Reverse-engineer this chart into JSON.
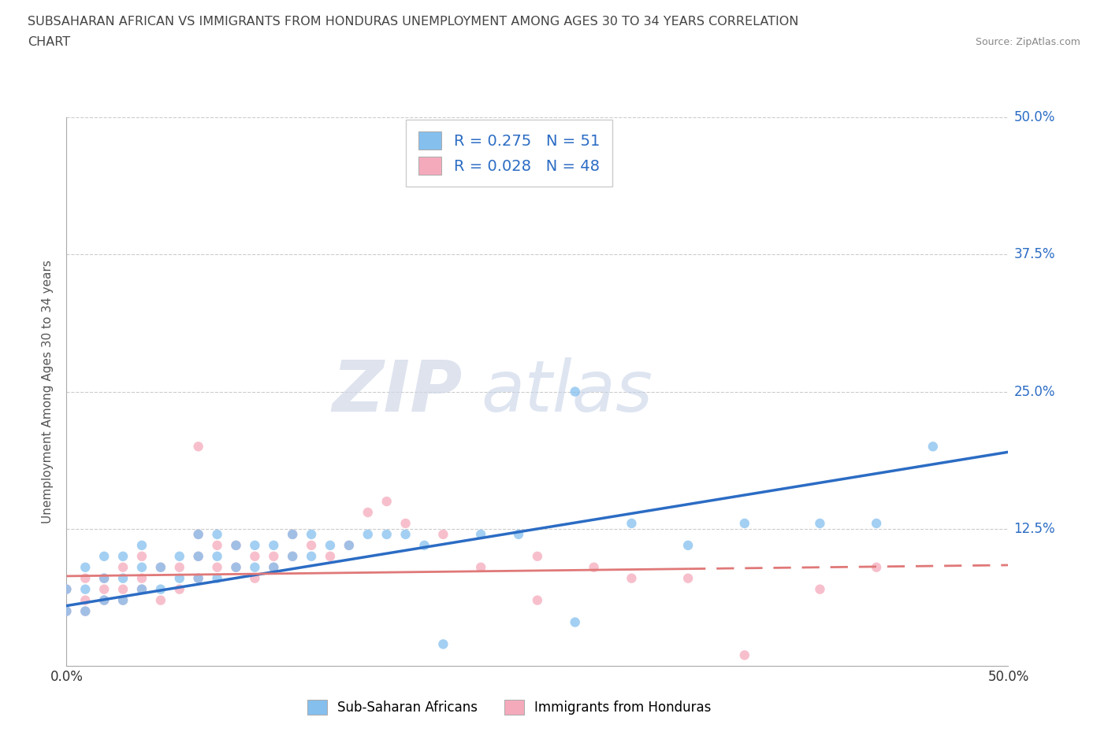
{
  "title_line1": "SUBSAHARAN AFRICAN VS IMMIGRANTS FROM HONDURAS UNEMPLOYMENT AMONG AGES 30 TO 34 YEARS CORRELATION",
  "title_line2": "CHART",
  "source_text": "Source: ZipAtlas.com",
  "ylabel": "Unemployment Among Ages 30 to 34 years",
  "xlim": [
    0.0,
    0.5
  ],
  "ylim": [
    0.0,
    0.5
  ],
  "x_tick_vals": [
    0.0,
    0.5
  ],
  "x_tick_labels": [
    "0.0%",
    "50.0%"
  ],
  "y_tick_vals": [
    0.0,
    0.125,
    0.25,
    0.375,
    0.5
  ],
  "y_tick_labels": [
    "",
    "12.5%",
    "25.0%",
    "37.5%",
    "50.0%"
  ],
  "grid_color": "#cccccc",
  "background_color": "#ffffff",
  "blue_scatter_color": "#85BFEE",
  "pink_scatter_color": "#F5AABC",
  "blue_line_color": "#2B6CC4",
  "pink_line_color": "#E07878",
  "R_blue": 0.275,
  "N_blue": 51,
  "R_pink": 0.028,
  "N_pink": 48,
  "legend_label_blue": "Sub-Saharan Africans",
  "legend_label_pink": "Immigrants from Honduras",
  "watermark_zip": "ZIP",
  "watermark_atlas": "atlas",
  "blue_scatter_x": [
    0.0,
    0.0,
    0.01,
    0.01,
    0.01,
    0.02,
    0.02,
    0.02,
    0.03,
    0.03,
    0.03,
    0.04,
    0.04,
    0.04,
    0.05,
    0.05,
    0.06,
    0.06,
    0.07,
    0.07,
    0.07,
    0.08,
    0.08,
    0.08,
    0.09,
    0.09,
    0.1,
    0.1,
    0.11,
    0.11,
    0.12,
    0.12,
    0.13,
    0.13,
    0.14,
    0.15,
    0.16,
    0.17,
    0.18,
    0.19,
    0.2,
    0.22,
    0.24,
    0.27,
    0.3,
    0.33,
    0.36,
    0.4,
    0.43,
    0.46,
    0.27
  ],
  "blue_scatter_y": [
    0.05,
    0.07,
    0.05,
    0.07,
    0.09,
    0.06,
    0.08,
    0.1,
    0.06,
    0.08,
    0.1,
    0.07,
    0.09,
    0.11,
    0.07,
    0.09,
    0.08,
    0.1,
    0.08,
    0.1,
    0.12,
    0.08,
    0.1,
    0.12,
    0.09,
    0.11,
    0.09,
    0.11,
    0.09,
    0.11,
    0.1,
    0.12,
    0.1,
    0.12,
    0.11,
    0.11,
    0.12,
    0.12,
    0.12,
    0.11,
    0.02,
    0.12,
    0.12,
    0.25,
    0.13,
    0.11,
    0.13,
    0.13,
    0.13,
    0.2,
    0.04
  ],
  "pink_scatter_x": [
    0.0,
    0.0,
    0.01,
    0.01,
    0.01,
    0.02,
    0.02,
    0.02,
    0.03,
    0.03,
    0.03,
    0.04,
    0.04,
    0.04,
    0.05,
    0.05,
    0.06,
    0.06,
    0.07,
    0.07,
    0.07,
    0.08,
    0.08,
    0.09,
    0.09,
    0.1,
    0.1,
    0.11,
    0.11,
    0.12,
    0.12,
    0.13,
    0.14,
    0.15,
    0.16,
    0.17,
    0.18,
    0.2,
    0.22,
    0.25,
    0.28,
    0.3,
    0.33,
    0.36,
    0.4,
    0.43,
    0.07,
    0.25
  ],
  "pink_scatter_y": [
    0.05,
    0.07,
    0.06,
    0.08,
    0.05,
    0.06,
    0.08,
    0.07,
    0.07,
    0.09,
    0.06,
    0.08,
    0.1,
    0.07,
    0.09,
    0.06,
    0.09,
    0.07,
    0.1,
    0.08,
    0.12,
    0.09,
    0.11,
    0.09,
    0.11,
    0.08,
    0.1,
    0.1,
    0.09,
    0.1,
    0.12,
    0.11,
    0.1,
    0.11,
    0.14,
    0.15,
    0.13,
    0.12,
    0.09,
    0.1,
    0.09,
    0.08,
    0.08,
    0.01,
    0.07,
    0.09,
    0.2,
    0.06
  ],
  "blue_line_x0": 0.0,
  "blue_line_y0": 0.055,
  "blue_line_x1": 0.5,
  "blue_line_y1": 0.195,
  "pink_line_x0": 0.0,
  "pink_line_y0": 0.082,
  "pink_line_x1": 0.5,
  "pink_line_y1": 0.092
}
